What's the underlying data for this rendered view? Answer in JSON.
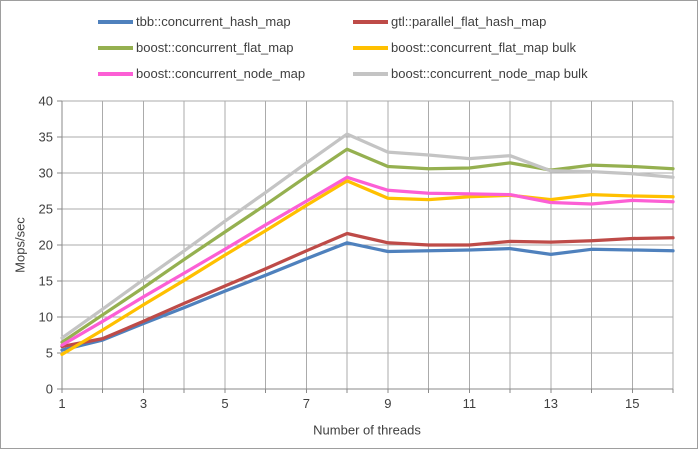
{
  "styles": {
    "background": "#FFFFFF",
    "border_color": "#9E9E9E",
    "grid_color": "#ABABAB",
    "axis_color": "#8A8A8A",
    "text_color": "#3F3F3F"
  },
  "chart_data": {
    "type": "line",
    "title": "",
    "xlabel": "Number of threads",
    "ylabel": "Mops/sec",
    "x": [
      1,
      2,
      3,
      4,
      5,
      6,
      7,
      8,
      9,
      10,
      11,
      12,
      13,
      14,
      15,
      16
    ],
    "x_tick_labels": [
      1,
      3,
      5,
      7,
      9,
      11,
      13,
      15
    ],
    "y_ticks": [
      0,
      5,
      10,
      15,
      20,
      25,
      30,
      35,
      40
    ],
    "xlim": [
      1,
      16
    ],
    "ylim": [
      0,
      40
    ],
    "grid": "both",
    "legend_position": "top",
    "series": [
      {
        "name": "tbb::concurrent_hash_map",
        "color": "#4F81BD",
        "values": [
          5.4,
          6.8,
          9.1,
          11.3,
          13.6,
          15.8,
          18.1,
          20.3,
          19.1,
          19.2,
          19.3,
          19.5,
          18.7,
          19.4,
          19.3,
          19.2
        ]
      },
      {
        "name": "gtl::parallel_flat_hash_map",
        "color": "#BE4B48",
        "values": [
          5.9,
          7.0,
          9.4,
          11.9,
          14.3,
          16.7,
          19.2,
          21.6,
          20.3,
          20.0,
          20.0,
          20.5,
          20.4,
          20.6,
          20.9,
          21.0
        ]
      },
      {
        "name": "boost::concurrent_flat_map",
        "color": "#95B050",
        "values": [
          6.5,
          10.3,
          14.1,
          18.0,
          21.8,
          25.6,
          29.5,
          33.3,
          30.9,
          30.6,
          30.7,
          31.4,
          30.4,
          31.1,
          30.9,
          30.6
        ]
      },
      {
        "name": "boost::concurrent_flat_map bulk",
        "color": "#FFC000",
        "values": [
          4.8,
          8.2,
          11.7,
          15.1,
          18.6,
          22.0,
          25.5,
          28.9,
          26.5,
          26.3,
          26.7,
          26.9,
          26.3,
          27.0,
          26.8,
          26.7
        ]
      },
      {
        "name": "boost::concurrent_node_map",
        "color": "#FC5FD5",
        "values": [
          6.1,
          9.4,
          12.8,
          16.1,
          19.4,
          22.8,
          26.1,
          29.4,
          27.6,
          27.2,
          27.1,
          27.0,
          25.9,
          25.7,
          26.2,
          26.0
        ]
      },
      {
        "name": "boost::concurrent_node_map bulk",
        "color": "#C4C4C4",
        "values": [
          7.1,
          11.1,
          15.2,
          19.2,
          23.3,
          27.3,
          31.4,
          35.4,
          32.9,
          32.5,
          32.0,
          32.4,
          30.3,
          30.2,
          29.9,
          29.4
        ]
      }
    ]
  }
}
